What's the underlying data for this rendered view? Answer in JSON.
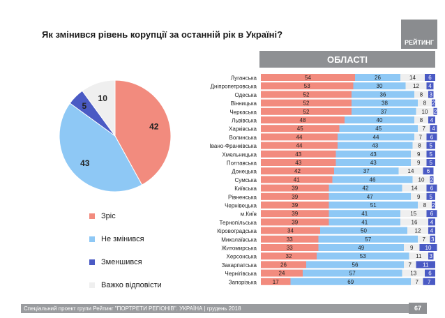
{
  "title": "Як змінився рівень корупції за останній рік в Україні?",
  "brand": "РЕЙТИНГ",
  "regions_header": "ОБЛАСТІ",
  "footer": "Спеціальний проект групи Рейтинг \"ПОРТРЕТИ РЕГІОНІВ\". УКРАЇНА | грудень 2018",
  "page_number": "67",
  "colors": {
    "increased": "#f28b7e",
    "unchanged": "#8ec8f5",
    "decreased": "#4a5ac4",
    "dont_know": "#efefef"
  },
  "legend": [
    {
      "label": "Зріс",
      "color": "#f28b7e"
    },
    {
      "label": "Не змінився",
      "color": "#8ec8f5"
    },
    {
      "label": "Зменшився",
      "color": "#4a5ac4"
    },
    {
      "label": "Важко відповісти",
      "color": "#efefef"
    }
  ],
  "chart_data": [
    {
      "type": "pie",
      "labels": [
        "Зріс",
        "Не змінився",
        "Зменшився",
        "Важко відповісти"
      ],
      "values": [
        42,
        43,
        5,
        10
      ]
    },
    {
      "type": "bar",
      "orientation": "horizontal",
      "stacked": true,
      "categories": [
        "Луганська",
        "Дніпропетровська",
        "Одеська",
        "Вінницька",
        "Черкаська",
        "Львівська",
        "Харківська",
        "Волинська",
        "Івано-Франківська",
        "Хмельницька",
        "Полтавська",
        "Донецька",
        "Сумська",
        "Київська",
        "Рівненська",
        "Чернівецька",
        "м.Київ",
        "Тернопільська",
        "Кіровоградська",
        "Миколаївська",
        "Житомирська",
        "Херсонська",
        "Закарпатська",
        "Чернігівська",
        "Запорізька"
      ],
      "series": [
        {
          "name": "Зріс",
          "values": [
            54,
            53,
            52,
            52,
            52,
            48,
            45,
            44,
            44,
            43,
            43,
            42,
            41,
            39,
            39,
            39,
            39,
            39,
            34,
            33,
            33,
            32,
            26,
            24,
            17
          ]
        },
        {
          "name": "Не змінився",
          "values": [
            26,
            30,
            36,
            38,
            37,
            40,
            45,
            44,
            43,
            43,
            43,
            37,
            46,
            42,
            47,
            51,
            41,
            41,
            50,
            57,
            49,
            53,
            56,
            57,
            69
          ]
        },
        {
          "name": "Важко відповісти",
          "values": [
            14,
            12,
            8,
            8,
            10,
            8,
            7,
            7,
            8,
            9,
            9,
            14,
            10,
            14,
            9,
            8,
            15,
            16,
            12,
            7,
            9,
            11,
            7,
            13,
            7
          ]
        },
        {
          "name": "Зменшився",
          "values": [
            6,
            4,
            3,
            2,
            2,
            4,
            4,
            6,
            5,
            5,
            5,
            6,
            2,
            6,
            5,
            2,
            6,
            4,
            4,
            3,
            10,
            3,
            11,
            6,
            7
          ]
        }
      ]
    }
  ]
}
